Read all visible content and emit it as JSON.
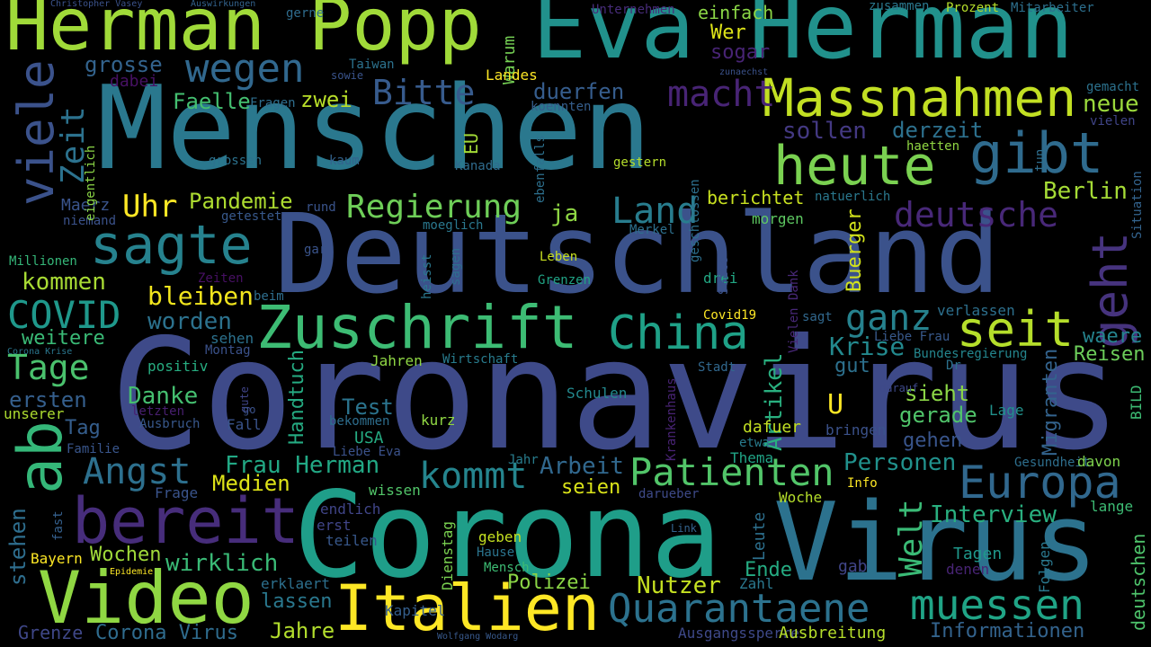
{
  "background_color": "#000000",
  "words": [
    {
      "text": "Coronavirus",
      "color": "#3e4a89",
      "orient": "h"
    },
    {
      "text": "Corona",
      "color": "#1f9e89",
      "orient": "h"
    },
    {
      "text": "Deutschland",
      "color": "#3b528b",
      "orient": "h"
    },
    {
      "text": "Menschen",
      "color": "#2a788e",
      "orient": "h"
    },
    {
      "text": "Virus",
      "color": "#2c728e",
      "orient": "h"
    },
    {
      "text": "Eva Herman",
      "color": "#21918c",
      "orient": "h"
    },
    {
      "text": "Herman Popp",
      "color": "#a0da39",
      "orient": "h"
    },
    {
      "text": "Video",
      "color": "#90d743",
      "orient": "h"
    },
    {
      "text": "Italien",
      "color": "#fde725",
      "orient": "h"
    },
    {
      "text": "bereit",
      "color": "#472d7b",
      "orient": "h"
    },
    {
      "text": "Zuschrift",
      "color": "#3dbc74",
      "orient": "h"
    },
    {
      "text": "Massnahmen",
      "color": "#c2df23",
      "orient": "h"
    },
    {
      "text": "heute",
      "color": "#7ad151",
      "orient": "h"
    },
    {
      "text": "sagte",
      "color": "#26828e",
      "orient": "h"
    },
    {
      "text": "ab",
      "color": "#35b779",
      "orient": "v"
    },
    {
      "text": "viele",
      "color": "#3b528b",
      "orient": "v"
    },
    {
      "text": "gibt",
      "color": "#2f6b8e",
      "orient": "h"
    },
    {
      "text": "geht",
      "color": "#46337e",
      "orient": "v"
    },
    {
      "text": "seit",
      "color": "#b5de2b",
      "orient": "h"
    },
    {
      "text": "China",
      "color": "#1fa187",
      "orient": "h"
    },
    {
      "text": "Europa",
      "color": "#31688e",
      "orient": "h"
    },
    {
      "text": "Patienten",
      "color": "#52c569",
      "orient": "h"
    },
    {
      "text": "Quarantaene",
      "color": "#2c728e",
      "orient": "h"
    },
    {
      "text": "muessen",
      "color": "#20a486",
      "orient": "h"
    },
    {
      "text": "wegen",
      "color": "#31688e",
      "orient": "h"
    },
    {
      "text": "macht",
      "color": "#482475",
      "orient": "h"
    },
    {
      "text": "Bitte",
      "color": "#375b8d",
      "orient": "h"
    },
    {
      "text": "deutsche",
      "color": "#482878",
      "orient": "h"
    },
    {
      "text": "ganz",
      "color": "#26828e",
      "orient": "h"
    },
    {
      "text": "Regierung",
      "color": "#6ece58",
      "orient": "h"
    },
    {
      "text": "Land",
      "color": "#287d8e",
      "orient": "h"
    },
    {
      "text": "kommt",
      "color": "#25858e",
      "orient": "h"
    },
    {
      "text": "Angst",
      "color": "#2d708e",
      "orient": "h"
    },
    {
      "text": "COVID",
      "color": "#1f988b",
      "orient": "h"
    },
    {
      "text": "Tage",
      "color": "#4ac16d",
      "orient": "h"
    },
    {
      "text": "Zeit",
      "color": "#2c728e",
      "orient": "v"
    },
    {
      "text": "Uhr",
      "color": "#fde725",
      "orient": "h"
    },
    {
      "text": "Pandemie",
      "color": "#addc30",
      "orient": "h"
    },
    {
      "text": "Welt",
      "color": "#3aba76",
      "orient": "v"
    },
    {
      "text": "Artikel",
      "color": "#29af7f",
      "orient": "v"
    },
    {
      "text": "Krise",
      "color": "#23898e",
      "orient": "h"
    },
    {
      "text": "Berlin",
      "color": "#a5db36",
      "orient": "h"
    },
    {
      "text": "grosse",
      "color": "#33638d",
      "orient": "h"
    },
    {
      "text": "duerfen",
      "color": "#365d8d",
      "orient": "h"
    },
    {
      "text": "sollen",
      "color": "#443983",
      "orient": "h"
    },
    {
      "text": "derzeit",
      "color": "#2d718e",
      "orient": "h"
    },
    {
      "text": "neue",
      "color": "#9bd93c",
      "orient": "h"
    },
    {
      "text": "Faelle",
      "color": "#44bf70",
      "orient": "h"
    },
    {
      "text": "zwei",
      "color": "#b8de29",
      "orient": "h"
    },
    {
      "text": "kommen",
      "color": "#a8db34",
      "orient": "h"
    },
    {
      "text": "bleiben",
      "color": "#f1e51d",
      "orient": "h"
    },
    {
      "text": "worden",
      "color": "#2c728e",
      "orient": "h"
    },
    {
      "text": "weitere",
      "color": "#3aba76",
      "orient": "h"
    },
    {
      "text": "ersten",
      "color": "#355f8d",
      "orient": "h"
    },
    {
      "text": "Danke",
      "color": "#45bf70",
      "orient": "h"
    },
    {
      "text": "Tag",
      "color": "#355e8d",
      "orient": "h"
    },
    {
      "text": "Frau Herman",
      "color": "#22a884",
      "orient": "h"
    },
    {
      "text": "Arbeit",
      "color": "#31688e",
      "orient": "h"
    },
    {
      "text": "Medien",
      "color": "#dde318",
      "orient": "h"
    },
    {
      "text": "seien",
      "color": "#dae319",
      "orient": "h"
    },
    {
      "text": "Personen",
      "color": "#21918c",
      "orient": "h"
    },
    {
      "text": "Interview",
      "color": "#29af7f",
      "orient": "h"
    },
    {
      "text": "Informationen",
      "color": "#33638d",
      "orient": "h"
    },
    {
      "text": "Nutzer",
      "color": "#c5e021",
      "orient": "h"
    },
    {
      "text": "Polizei",
      "color": "#8bd646",
      "orient": "h"
    },
    {
      "text": "lassen",
      "color": "#2a788e",
      "orient": "h"
    },
    {
      "text": "Jahre",
      "color": "#b2dd2d",
      "orient": "h"
    },
    {
      "text": "Corona Virus",
      "color": "#2f6c8e",
      "orient": "h"
    },
    {
      "text": "Grenze",
      "color": "#3f4788",
      "orient": "h"
    },
    {
      "text": "wirklich",
      "color": "#3aba76",
      "orient": "h"
    },
    {
      "text": "Wochen",
      "color": "#9fda3a",
      "orient": "h"
    },
    {
      "text": "stehen",
      "color": "#2e6e8e",
      "orient": "v"
    },
    {
      "text": "Test",
      "color": "#2b748e",
      "orient": "h"
    },
    {
      "text": "gerade",
      "color": "#50c46a",
      "orient": "h"
    },
    {
      "text": "sieht",
      "color": "#8bd646",
      "orient": "h"
    },
    {
      "text": "gut",
      "color": "#2d718e",
      "orient": "h"
    },
    {
      "text": "waere",
      "color": "#25848e",
      "orient": "h"
    },
    {
      "text": "Reisen",
      "color": "#6ccd5a",
      "orient": "h"
    },
    {
      "text": "gehen",
      "color": "#39558c",
      "orient": "h"
    },
    {
      "text": "dafuer",
      "color": "#c2df23",
      "orient": "h"
    },
    {
      "text": "Buerger",
      "color": "#d2e21b",
      "orient": "v"
    },
    {
      "text": "Handtuch",
      "color": "#25ab82",
      "orient": "v"
    },
    {
      "text": "Migranten",
      "color": "#33638d",
      "orient": "v"
    },
    {
      "text": "Ende",
      "color": "#25ab82",
      "orient": "h"
    },
    {
      "text": "Tagen",
      "color": "#1f988b",
      "orient": "h"
    },
    {
      "text": "U",
      "color": "#fde725",
      "orient": "h"
    },
    {
      "text": "ja",
      "color": "#8fd744",
      "orient": "h"
    },
    {
      "text": "EU",
      "color": "#a2da37",
      "orient": "v"
    },
    {
      "text": "Wer",
      "color": "#dde318",
      "orient": "h"
    },
    {
      "text": "sogar",
      "color": "#482475",
      "orient": "h"
    },
    {
      "text": "einfach",
      "color": "#8bd646",
      "orient": "h"
    },
    {
      "text": "Warum",
      "color": "#75d054",
      "orient": "v"
    },
    {
      "text": "Landes",
      "color": "#fde725",
      "orient": "h"
    },
    {
      "text": "dabei",
      "color": "#471164",
      "orient": "h"
    },
    {
      "text": "berichtet",
      "color": "#c8e020",
      "orient": "h"
    },
    {
      "text": "morgen",
      "color": "#5ec962",
      "orient": "h"
    },
    {
      "text": "Maerz",
      "color": "#3a548c",
      "orient": "h"
    },
    {
      "text": "deutschen",
      "color": "#4ec36b",
      "orient": "v"
    },
    {
      "text": "Gesundheit",
      "color": "#2e6f8e",
      "orient": "h"
    },
    {
      "text": "davon",
      "color": "#7fd34e",
      "orient": "h"
    },
    {
      "text": "Situation",
      "color": "#33638d",
      "orient": "v"
    },
    {
      "text": "BILD",
      "color": "#3dbc74",
      "orient": "v"
    },
    {
      "text": "Folgen",
      "color": "#2a788e",
      "orient": "v"
    },
    {
      "text": "lange",
      "color": "#3dbc74",
      "orient": "h"
    },
    {
      "text": "denen",
      "color": "#482475",
      "orient": "h"
    },
    {
      "text": "gab",
      "color": "#404588",
      "orient": "h"
    },
    {
      "text": "Thema",
      "color": "#20a486",
      "orient": "h"
    },
    {
      "text": "Woche",
      "color": "#b5de2b",
      "orient": "h"
    },
    {
      "text": "Info",
      "color": "#fde725",
      "orient": "h"
    },
    {
      "text": "Bayern",
      "color": "#fde725",
      "orient": "h"
    },
    {
      "text": "Leute",
      "color": "#2d708e",
      "orient": "v"
    },
    {
      "text": "Dienstag",
      "color": "#7ad151",
      "orient": "v"
    },
    {
      "text": "Mensch",
      "color": "#3dbc74",
      "orient": "h"
    },
    {
      "text": "Hause",
      "color": "#2b748e",
      "orient": "h"
    },
    {
      "text": "geben",
      "color": "#c5e021",
      "orient": "h"
    },
    {
      "text": "teilen",
      "color": "#38588c",
      "orient": "h"
    },
    {
      "text": "erst",
      "color": "#404588",
      "orient": "h"
    },
    {
      "text": "endlich",
      "color": "#404588",
      "orient": "h"
    },
    {
      "text": "wissen",
      "color": "#52c569",
      "orient": "h"
    },
    {
      "text": "Frage",
      "color": "#3a548c",
      "orient": "h"
    },
    {
      "text": "fast",
      "color": "#35608d",
      "orient": "v"
    },
    {
      "text": "Covid19",
      "color": "#fde725",
      "orient": "h"
    },
    {
      "text": "Vielen Dank",
      "color": "#482878",
      "orient": "v"
    },
    {
      "text": "sagt",
      "color": "#31688e",
      "orient": "h"
    },
    {
      "text": "verlassen",
      "color": "#2d708e",
      "orient": "h"
    },
    {
      "text": "Liebe Frau",
      "color": "#38598c",
      "orient": "h"
    },
    {
      "text": "Dr",
      "color": "#2c728e",
      "orient": "h"
    },
    {
      "text": "Bundesregierung",
      "color": "#24868e",
      "orient": "h"
    },
    {
      "text": "darauf",
      "color": "#3e4989",
      "orient": "h"
    },
    {
      "text": "Lage",
      "color": "#21918c",
      "orient": "h"
    },
    {
      "text": "bringen",
      "color": "#3b528b",
      "orient": "h"
    },
    {
      "text": "etwa",
      "color": "#287c8e",
      "orient": "h"
    },
    {
      "text": "Krankenhaus",
      "color": "#482374",
      "orient": "v"
    },
    {
      "text": "darueber",
      "color": "#3e4a89",
      "orient": "h"
    },
    {
      "text": "Link",
      "color": "#33638d",
      "orient": "h"
    },
    {
      "text": "Ausgangssperre",
      "color": "#3e4989",
      "orient": "h"
    },
    {
      "text": "Ausbreitung",
      "color": "#b5de2b",
      "orient": "h"
    },
    {
      "text": "Zahl",
      "color": "#2a788e",
      "orient": "h"
    },
    {
      "text": "Wolfgang Wodarg",
      "color": "#38598c",
      "orient": "h"
    },
    {
      "text": "Kapitel",
      "color": "#355f8d",
      "orient": "h"
    },
    {
      "text": "erklaert",
      "color": "#2d708e",
      "orient": "h"
    },
    {
      "text": "Epidemie",
      "color": "#fde725",
      "orient": "h"
    },
    {
      "text": "Jahr",
      "color": "#287d8e",
      "orient": "h"
    },
    {
      "text": "kurz",
      "color": "#90d743",
      "orient": "h"
    },
    {
      "text": "USA",
      "color": "#25ab82",
      "orient": "h"
    },
    {
      "text": "Liebe Eva",
      "color": "#3b528b",
      "orient": "h"
    },
    {
      "text": "bekommen",
      "color": "#2e6e8e",
      "orient": "h"
    },
    {
      "text": "Schulen",
      "color": "#23898e",
      "orient": "h"
    },
    {
      "text": "Jahren",
      "color": "#8fd744",
      "orient": "h"
    },
    {
      "text": "Wirtschaft",
      "color": "#287c8e",
      "orient": "h"
    },
    {
      "text": "Stadt",
      "color": "#31688e",
      "orient": "h"
    },
    {
      "text": "positiv",
      "color": "#27ad81",
      "orient": "h"
    },
    {
      "text": "Montag",
      "color": "#3b528b",
      "orient": "h"
    },
    {
      "text": "sehen",
      "color": "#2c728e",
      "orient": "h"
    },
    {
      "text": "Corona Krise",
      "color": "#2a768e",
      "orient": "h"
    },
    {
      "text": "unserer",
      "color": "#addc30",
      "orient": "h"
    },
    {
      "text": "Familie",
      "color": "#39568c",
      "orient": "h"
    },
    {
      "text": "Ausbruch",
      "color": "#38588c",
      "orient": "h"
    },
    {
      "text": "letzten",
      "color": "#481f70",
      "orient": "h"
    },
    {
      "text": "Fall",
      "color": "#3a548c",
      "orient": "h"
    },
    {
      "text": "gute",
      "color": "#404588",
      "orient": "v"
    },
    {
      "text": "go",
      "color": "#3b528b",
      "orient": "h"
    },
    {
      "text": "Zeiten",
      "color": "#471063",
      "orient": "h"
    },
    {
      "text": "beim",
      "color": "#2e6e8e",
      "orient": "h"
    },
    {
      "text": "Millionen",
      "color": "#35b779",
      "orient": "h"
    },
    {
      "text": "niemand",
      "color": "#3b528b",
      "orient": "h"
    },
    {
      "text": "getestet",
      "color": "#38598c",
      "orient": "h"
    },
    {
      "text": "rund",
      "color": "#3a548c",
      "orient": "h"
    },
    {
      "text": "gar",
      "color": "#3a548c",
      "orient": "h"
    },
    {
      "text": "moeglich",
      "color": "#2a788e",
      "orient": "h"
    },
    {
      "text": "Merkel",
      "color": "#2d708e",
      "orient": "h"
    },
    {
      "text": "geschlossen",
      "color": "#2d708e",
      "orient": "v"
    },
    {
      "text": "natuerlich",
      "color": "#2a788e",
      "orient": "h"
    },
    {
      "text": "drei",
      "color": "#22a884",
      "orient": "h"
    },
    {
      "text": "Seite",
      "color": "#3b528b",
      "orient": "v"
    },
    {
      "text": "Leben",
      "color": "#c8e020",
      "orient": "h"
    },
    {
      "text": "Grenzen",
      "color": "#20a486",
      "orient": "h"
    },
    {
      "text": "heisst",
      "color": "#2a788e",
      "orient": "v"
    },
    {
      "text": "sagen",
      "color": "#2e6f8e",
      "orient": "v"
    },
    {
      "text": "ebenfalls",
      "color": "#2d708e",
      "orient": "v"
    },
    {
      "text": "kaum",
      "color": "#33638d",
      "orient": "h"
    },
    {
      "text": "grossen",
      "color": "#2c728e",
      "orient": "h"
    },
    {
      "text": "Kanada",
      "color": "#2f6c8e",
      "orient": "h"
    },
    {
      "text": "gestern",
      "color": "#b5de2b",
      "orient": "h"
    },
    {
      "text": "eigentlich",
      "color": "#8bd646",
      "orient": "v"
    },
    {
      "text": "koennten",
      "color": "#355e8d",
      "orient": "h"
    },
    {
      "text": "Fragen",
      "color": "#2e6e8e",
      "orient": "h"
    },
    {
      "text": "sowie",
      "color": "#3a548c",
      "orient": "h"
    },
    {
      "text": "Taiwan",
      "color": "#2c728e",
      "orient": "h"
    },
    {
      "text": "zunaechst",
      "color": "#3b528b",
      "orient": "h"
    },
    {
      "text": "Christopher Vasey",
      "color": "#3b528b",
      "orient": "h"
    },
    {
      "text": "Auswirkungen",
      "color": "#33638d",
      "orient": "h"
    },
    {
      "text": "gerne",
      "color": "#2f6c8e",
      "orient": "h"
    },
    {
      "text": "Unternehmen",
      "color": "#472c7a",
      "orient": "h"
    },
    {
      "text": "zusammen",
      "color": "#2a788e",
      "orient": "h"
    },
    {
      "text": "Prozent",
      "color": "#b5de2b",
      "orient": "h"
    },
    {
      "text": "Mitarbeiter",
      "color": "#2d708e",
      "orient": "h"
    },
    {
      "text": "gemacht",
      "color": "#2c728e",
      "orient": "h"
    },
    {
      "text": "vielen",
      "color": "#404588",
      "orient": "h"
    },
    {
      "text": "haetten",
      "color": "#90d743",
      "orient": "h"
    },
    {
      "text": "tun",
      "color": "#2e6e8e",
      "orient": "v"
    }
  ]
}
